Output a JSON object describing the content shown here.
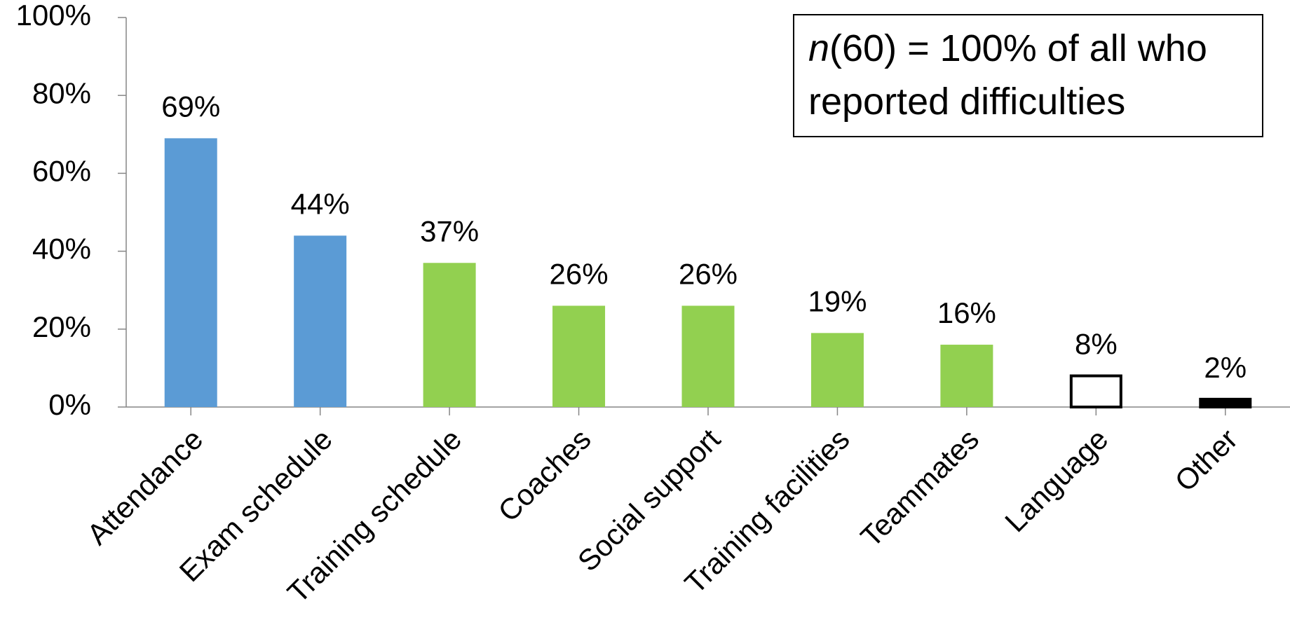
{
  "chart_data": {
    "type": "bar",
    "categories": [
      "Attendance",
      "Exam schedule",
      "Training schedule",
      "Coaches",
      "Social support",
      "Training facilities",
      "Teammates",
      "Language",
      "Other"
    ],
    "values": [
      69,
      44,
      37,
      26,
      26,
      19,
      16,
      8,
      2
    ],
    "value_labels": [
      "69%",
      "44%",
      "37%",
      "26%",
      "26%",
      "19%",
      "16%",
      "8%",
      "2%"
    ],
    "colors": [
      "#5b9bd5",
      "#5b9bd5",
      "#92d050",
      "#92d050",
      "#92d050",
      "#92d050",
      "#92d050",
      "#ffffff",
      "#000000"
    ],
    "edgecolors": [
      null,
      null,
      null,
      null,
      null,
      null,
      null,
      "#000000",
      "#000000"
    ],
    "ylim": [
      0,
      100
    ],
    "yticks": [
      {
        "value": 0,
        "label": "0%"
      },
      {
        "value": 20,
        "label": "20%"
      },
      {
        "value": 40,
        "label": "40%"
      },
      {
        "value": 60,
        "label": "60%"
      },
      {
        "value": 80,
        "label": "80%"
      },
      {
        "value": 100,
        "label": "100%"
      }
    ],
    "grid": false,
    "annotation": {
      "lines": [
        [
          {
            "text": "n",
            "italic": true
          },
          {
            "text": "(60) = 100% of all who"
          }
        ],
        [
          {
            "text": "reported difficulties"
          }
        ]
      ]
    }
  }
}
